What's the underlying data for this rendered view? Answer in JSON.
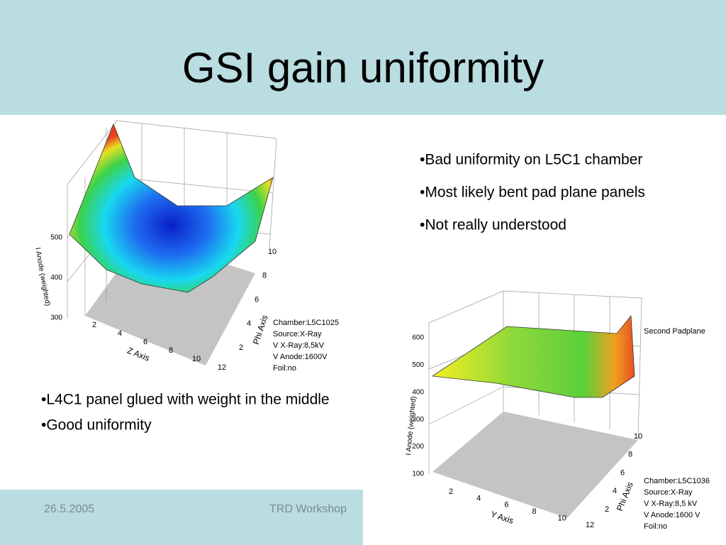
{
  "header": {
    "title": "GSI gain uniformity"
  },
  "bullets_right": [
    "•Bad uniformity on L5C1 chamber",
    "•Most likely bent pad plane panels",
    "•Not really understood"
  ],
  "bullets_left": [
    "•L4C1 panel glued with weight in the middle",
    "•Good uniformity"
  ],
  "footer": {
    "date": "26.5.2005",
    "event": "TRD Workshop"
  },
  "plot1": {
    "y_label": "I Anode (weighted)",
    "yticks": [
      300,
      400,
      500
    ],
    "x_label": "Z Axis",
    "xticks": [
      2,
      4,
      6,
      8,
      10,
      12
    ],
    "phi_label": "Phi Axis",
    "phiticks": [
      2,
      4,
      6,
      8,
      10
    ],
    "info": [
      "Chamber:L5C1025",
      "Source:X-Ray",
      "V X-Ray:8,5kV",
      "V Anode:1600V",
      "Foil:no"
    ]
  },
  "plot2": {
    "title": "Second Padplane",
    "y_label": "I Anode (weighted)",
    "yticks": [
      100,
      200,
      300,
      400,
      500,
      600
    ],
    "x_label": "Y Axis",
    "xticks": [
      2,
      4,
      6,
      8,
      10,
      12
    ],
    "phi_label": "Phi Axis",
    "phiticks": [
      2,
      4,
      6,
      8,
      10
    ],
    "info": [
      "Chamber:L5C1036",
      "Source:X-Ray",
      "V X-Ray:8,5 kV",
      "V Anode:1600 V",
      "Foil:no"
    ]
  }
}
